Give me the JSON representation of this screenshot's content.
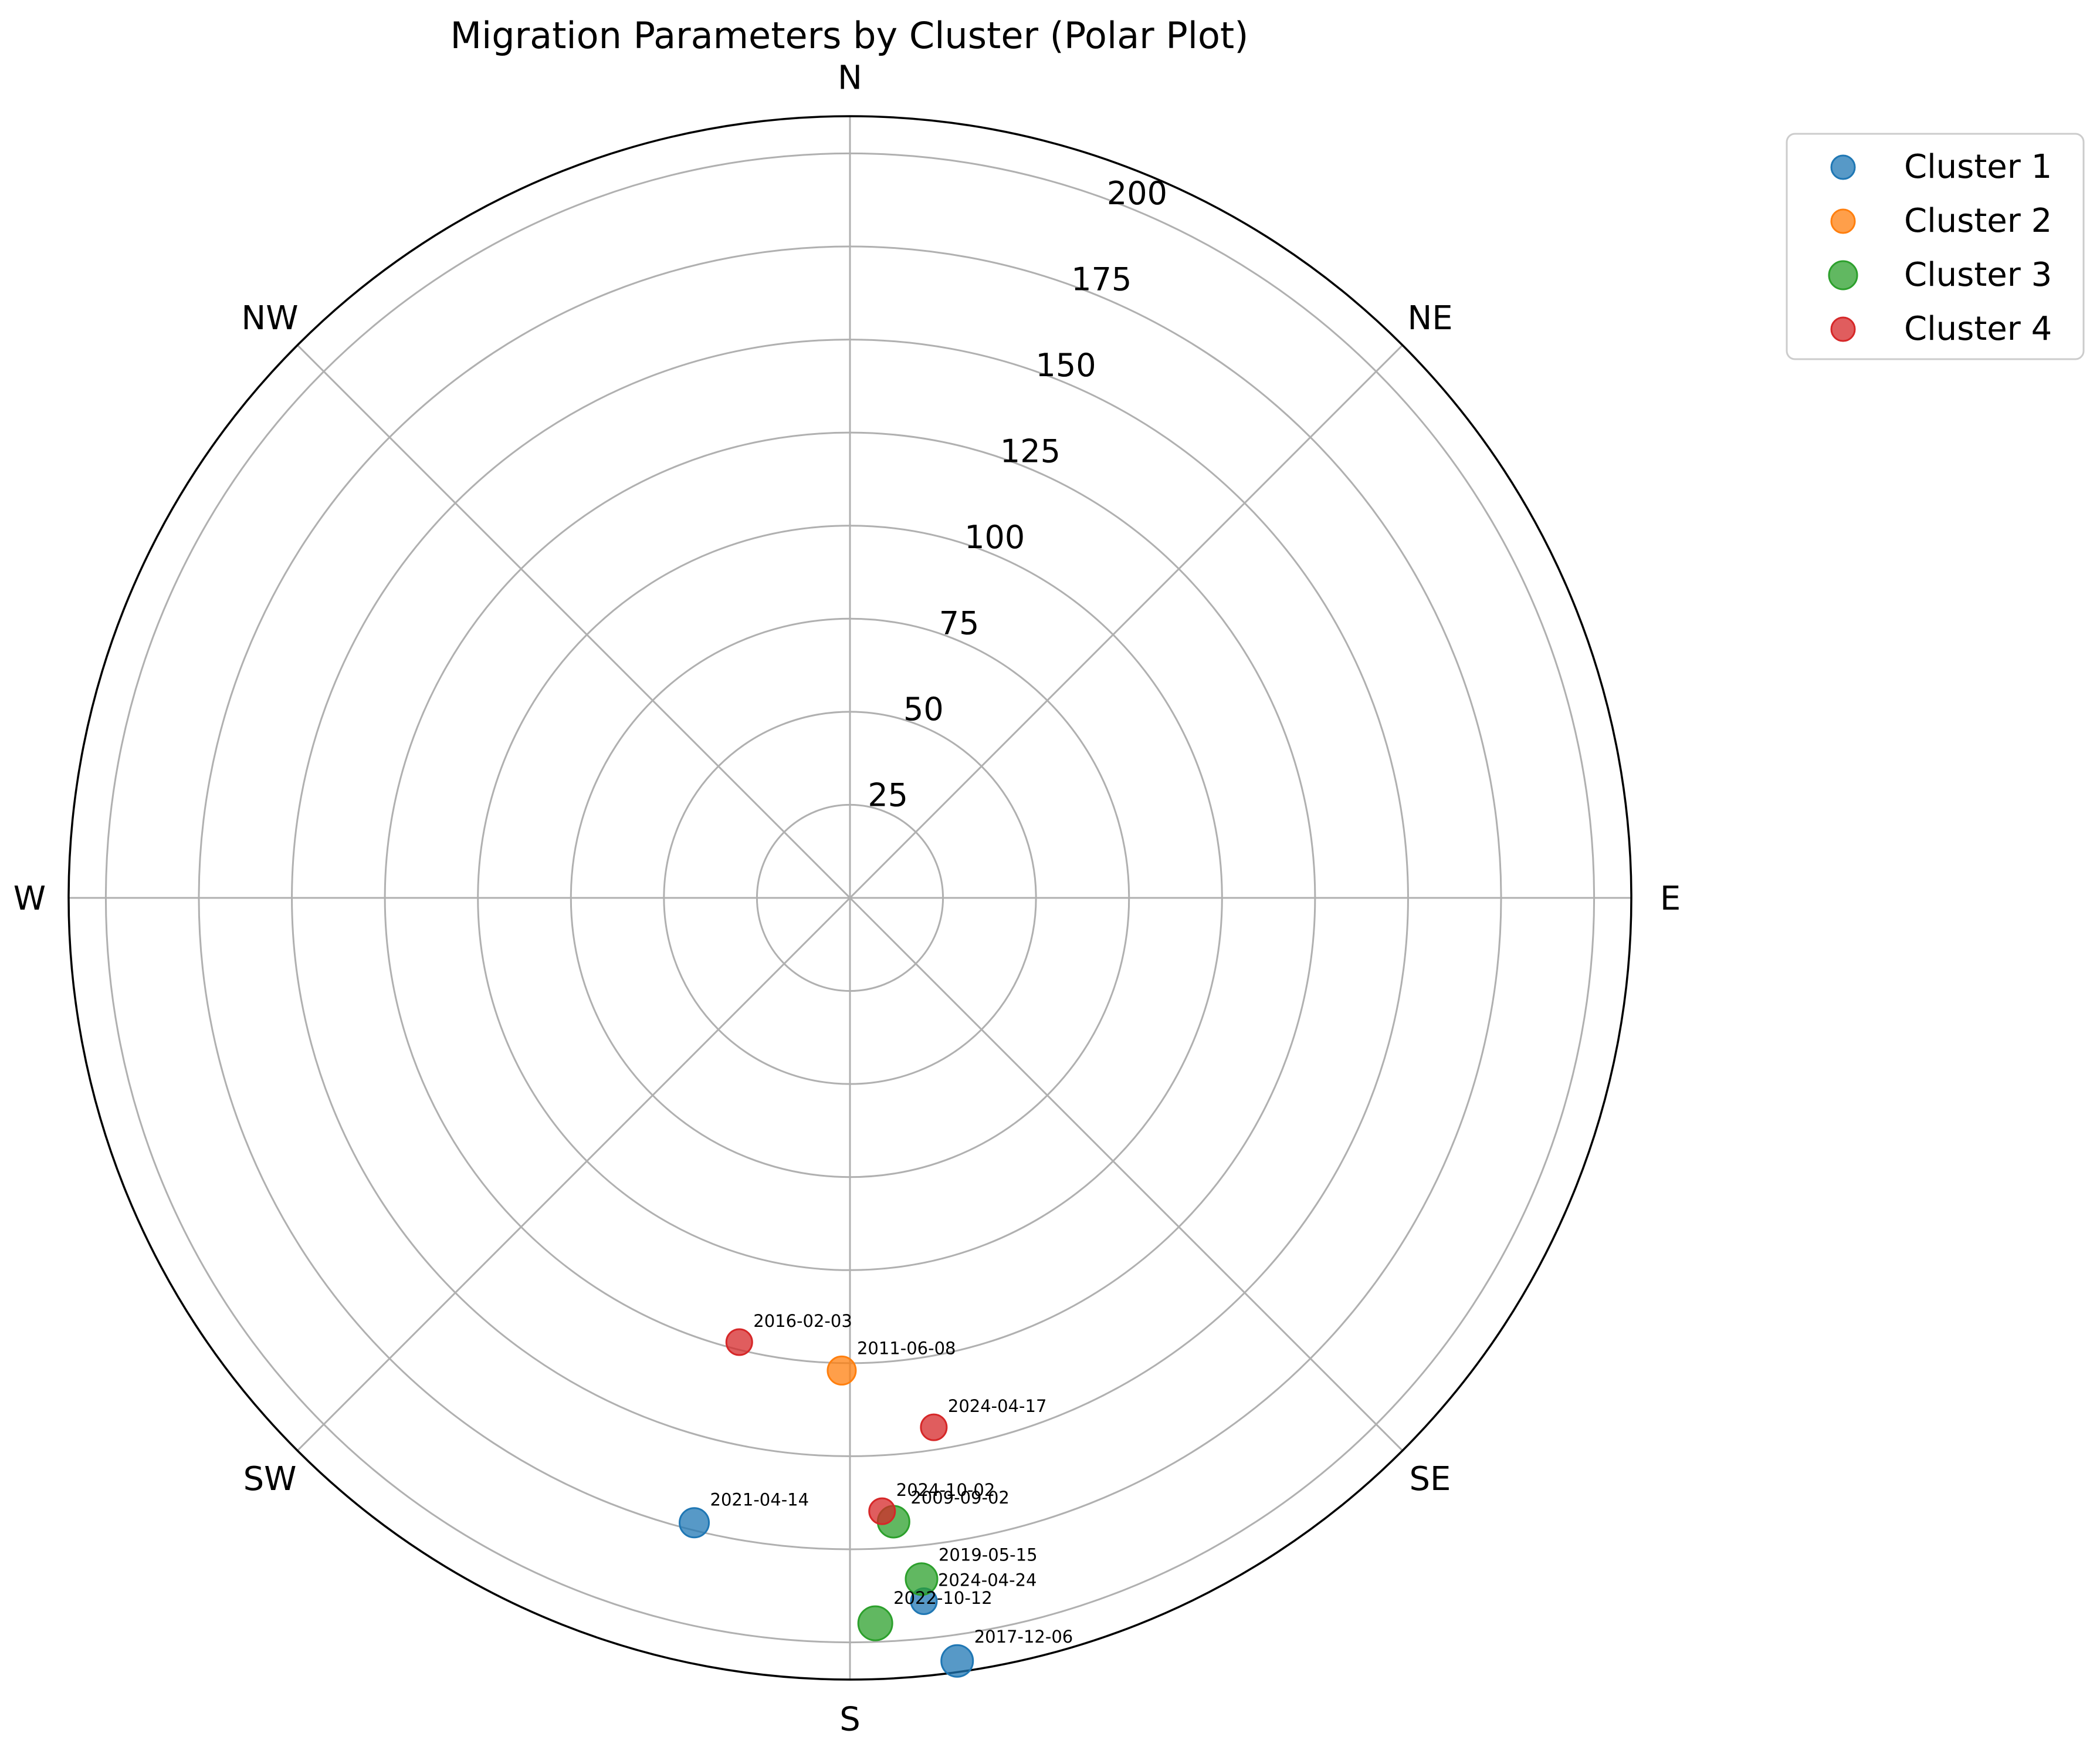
{
  "chart_data": {
    "type": "scatter",
    "projection": "polar",
    "title": "Migration Parameters by Cluster (Polar Plot)",
    "theta_direction": "clockwise",
    "theta_zero": "N",
    "theta_labels": [
      "N",
      "NE",
      "E",
      "SE",
      "S",
      "SW",
      "W",
      "NW"
    ],
    "r_ticks": [
      25,
      50,
      75,
      100,
      125,
      150,
      175,
      200
    ],
    "r_tick_labels": [
      "25",
      "50",
      "75",
      "100",
      "125",
      "150",
      "175",
      "200"
    ],
    "rlim": [
      0,
      210
    ],
    "grid": true,
    "legend_position": "upper-right-outside",
    "series": [
      {
        "name": "Cluster 1",
        "color": "#1f77b4",
        "points": [
          {
            "label": "2021-04-14",
            "theta": 194,
            "r": 173,
            "size": 1.1
          },
          {
            "label": "2024-04-24",
            "theta": 174,
            "r": 190,
            "size": 0.8
          },
          {
            "label": "2017-12-06",
            "theta": 172,
            "r": 207,
            "size": 1.3
          }
        ]
      },
      {
        "name": "Cluster 2",
        "color": "#ff7f0e",
        "points": [
          {
            "label": "2011-06-08",
            "theta": 181,
            "r": 127,
            "size": 1.0
          }
        ]
      },
      {
        "name": "Cluster 3",
        "color": "#2ca02c",
        "points": [
          {
            "label": "2009-09-02",
            "theta": 176,
            "r": 168,
            "size": 1.3
          },
          {
            "label": "2019-05-15",
            "theta": 174,
            "r": 184,
            "size": 1.3
          },
          {
            "label": "2022-10-12",
            "theta": 178,
            "r": 195,
            "size": 1.5
          }
        ]
      },
      {
        "name": "Cluster 4",
        "color": "#d62728",
        "points": [
          {
            "label": "2016-02-03",
            "theta": 194,
            "r": 123,
            "size": 0.8
          },
          {
            "label": "2024-04-17",
            "theta": 171,
            "r": 144,
            "size": 0.8
          },
          {
            "label": "2024-10-02",
            "theta": 177,
            "r": 165,
            "size": 0.8
          }
        ]
      }
    ]
  }
}
